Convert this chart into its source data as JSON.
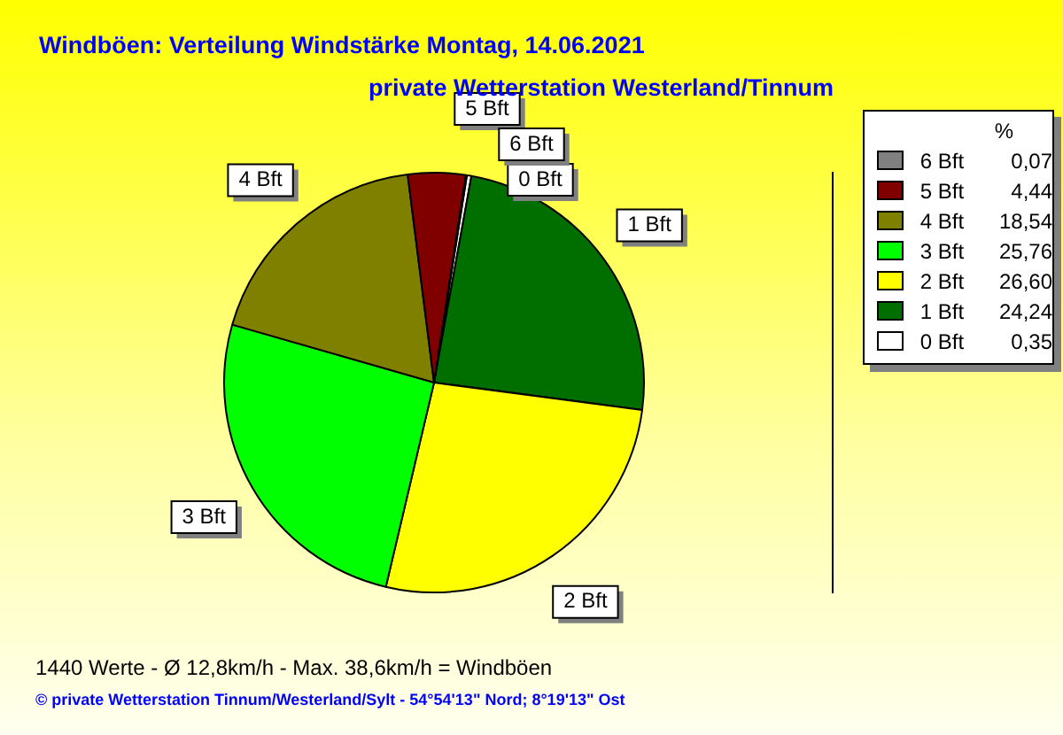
{
  "chart_data": {
    "type": "pie",
    "title": "Windböen: Verteilung Windstärke  Montag, 14.06.2021",
    "subtitle": "private Wetterstation Westerland/Tinnum",
    "categories": [
      "0 Bft",
      "1 Bft",
      "2 Bft",
      "3 Bft",
      "4 Bft",
      "5 Bft",
      "6 Bft"
    ],
    "values": [
      0.35,
      24.24,
      26.6,
      25.76,
      18.54,
      4.44,
      0.07
    ],
    "value_labels": [
      "0,35",
      "24,24",
      "26,60",
      "25,76",
      "18,54",
      "4,44",
      "0,07"
    ],
    "colors": [
      "#ffffff",
      "#006f00",
      "#ffff00",
      "#00ff00",
      "#808000",
      "#800000",
      "#808080"
    ],
    "legend": "top right",
    "legend_title": "%",
    "annotations": [
      "1440 Werte   -   Ø 12,8km/h  -  Max. 38,6km/h = Windböen",
      "© private Wetterstation Tinnum/Westerland/Sylt   -   54°54'13\" Nord; 8°19'13\" Ost"
    ]
  }
}
